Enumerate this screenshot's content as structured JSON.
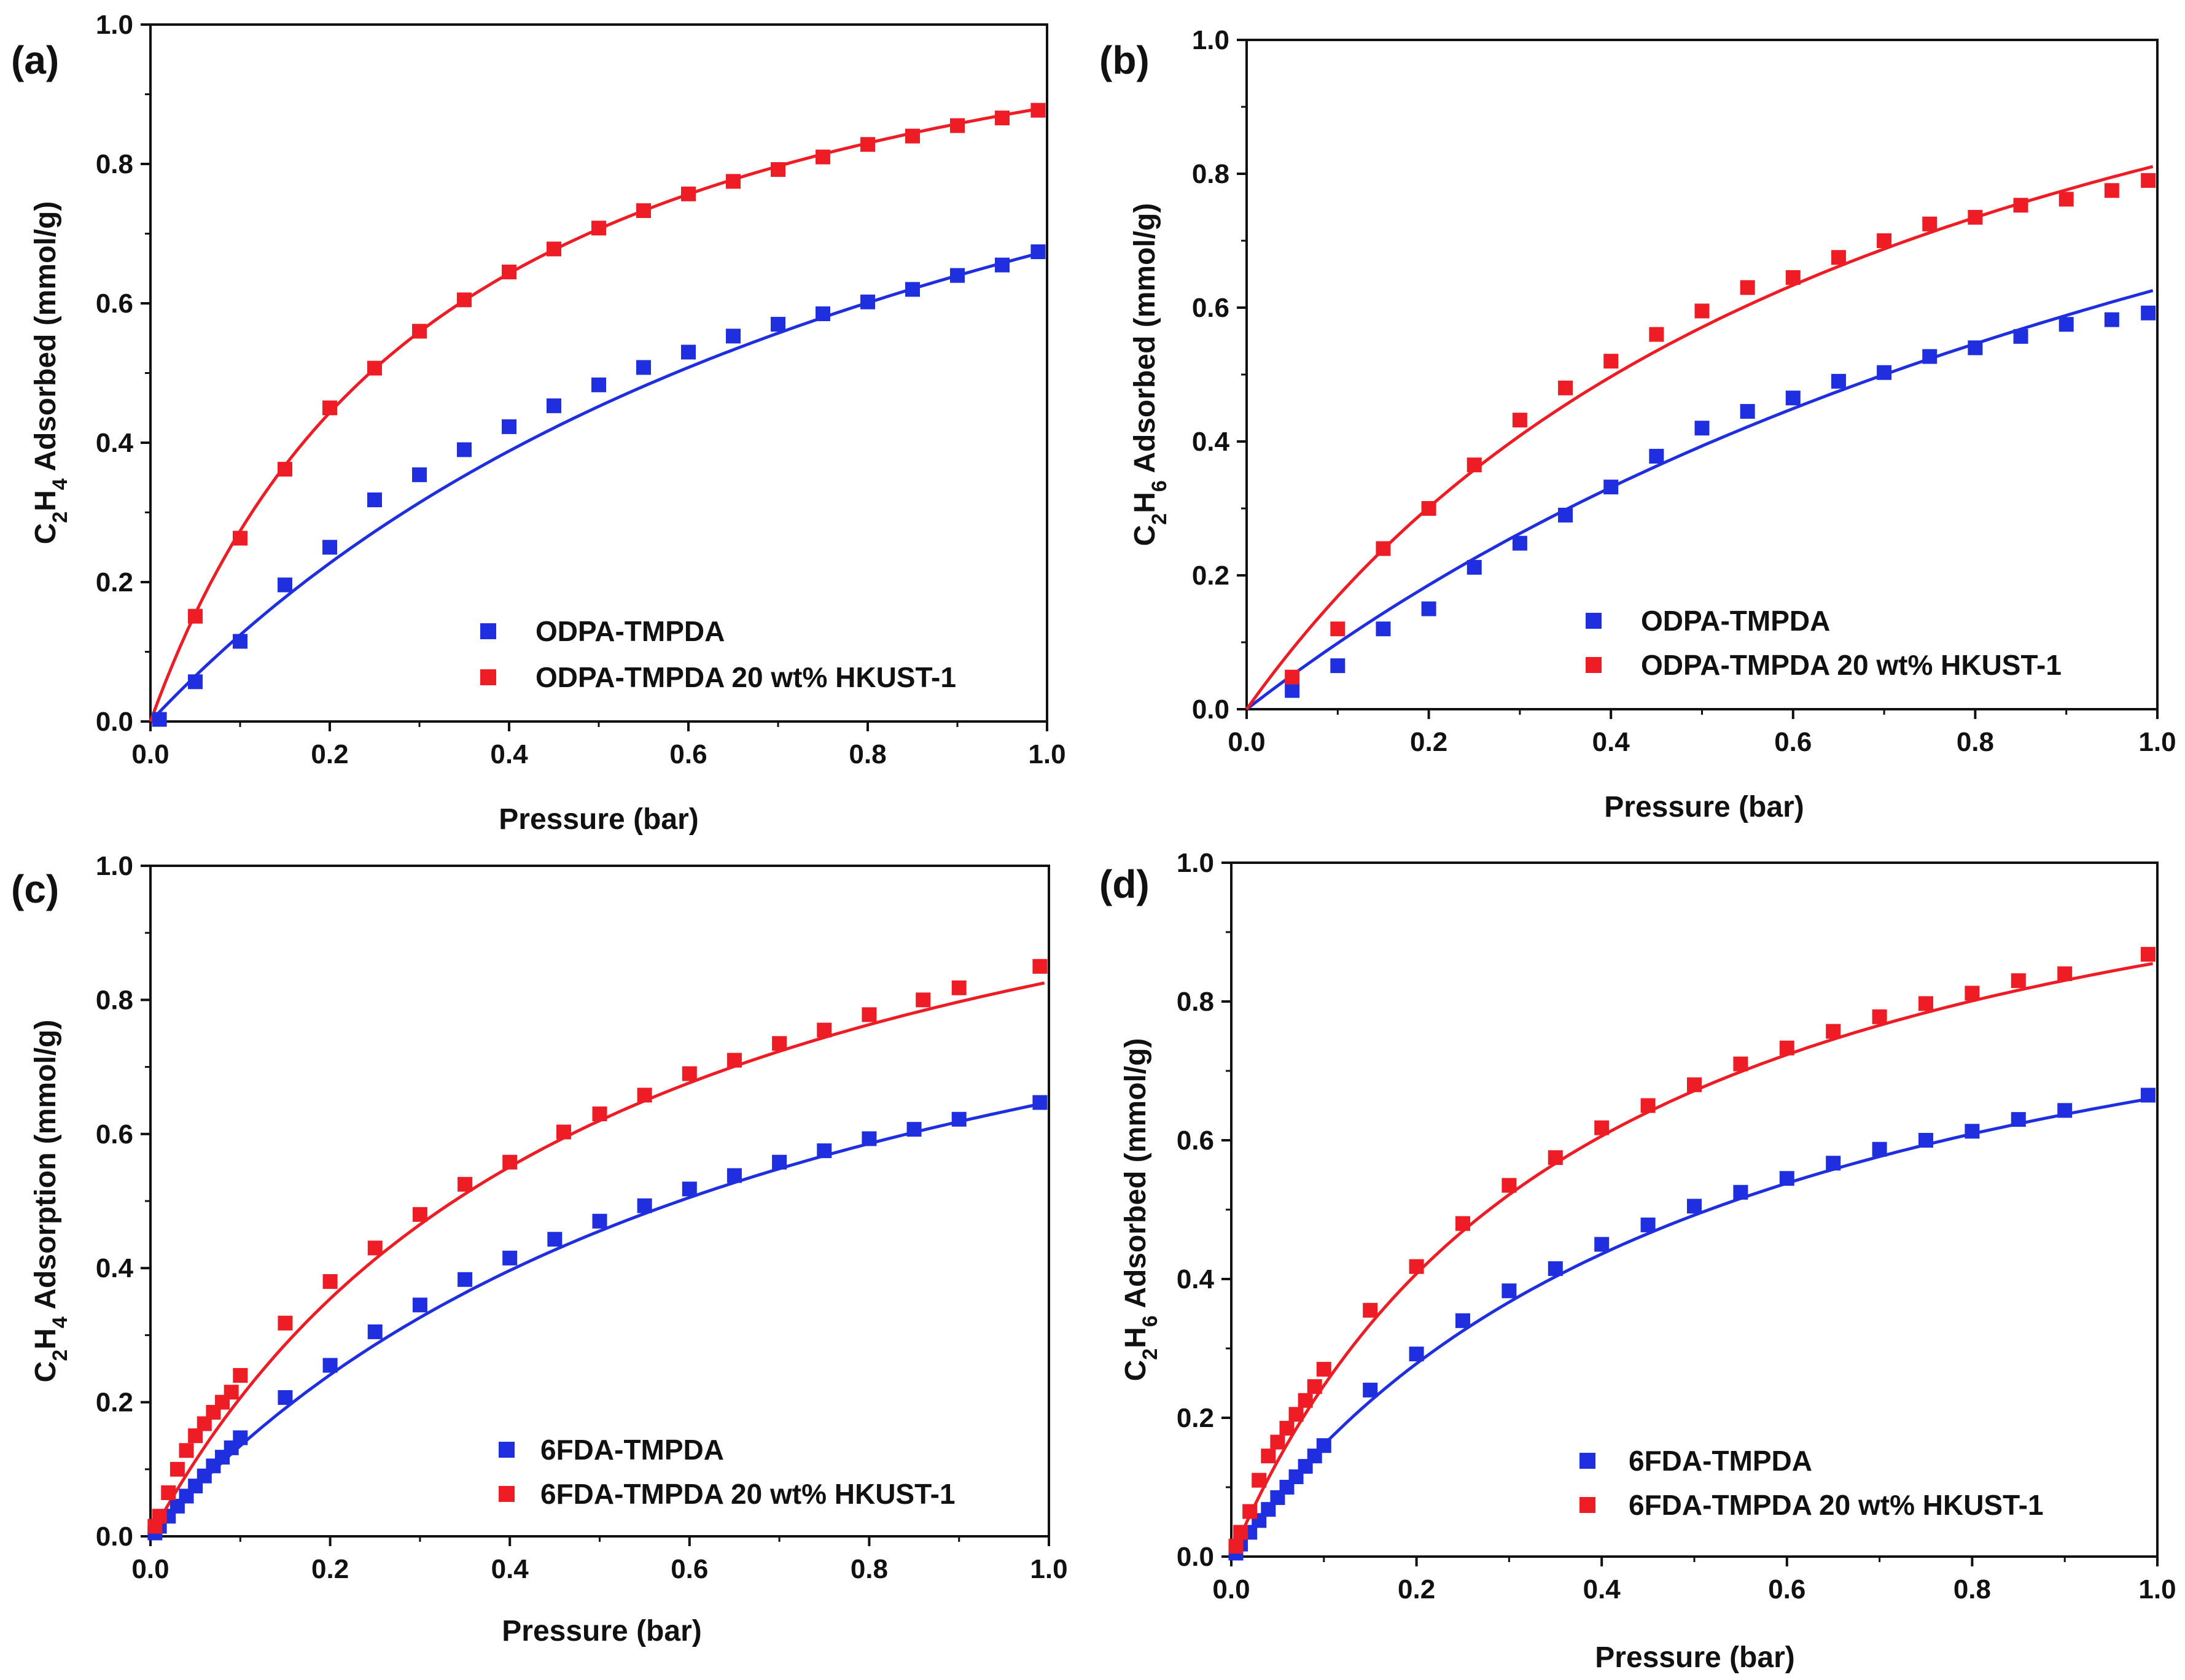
{
  "figure": {
    "panels": [
      "(a)",
      "(b)",
      "(c)",
      "(d)"
    ]
  },
  "colors": {
    "blue": "#1f2fe0",
    "red": "#ee1c25",
    "axis": "#111111"
  },
  "chart_data": [
    {
      "type": "scatter",
      "panel": "(a)",
      "title": "",
      "xlabel": "Pressure (bar)",
      "ylabel_parts": [
        "C",
        "2",
        "H",
        "4",
        " Adsorbed (mmol/g)"
      ],
      "xlim": [
        0,
        1
      ],
      "ylim": [
        0,
        1
      ],
      "xticks": [
        "0.0",
        "0.2",
        "0.4",
        "0.6",
        "0.8",
        "1.0"
      ],
      "yticks": [
        "0.0",
        "0.2",
        "0.4",
        "0.6",
        "0.8",
        "1.0"
      ],
      "legend_position": "bottom-right",
      "series": [
        {
          "name": "ODPA-TMPDA",
          "color": "blue",
          "x": [
            0.01,
            0.05,
            0.1,
            0.15,
            0.2,
            0.25,
            0.3,
            0.35,
            0.4,
            0.45,
            0.5,
            0.55,
            0.6,
            0.65,
            0.7,
            0.75,
            0.8,
            0.85,
            0.9,
            0.95,
            0.99
          ],
          "y": [
            0.003,
            0.057,
            0.115,
            0.196,
            0.25,
            0.318,
            0.354,
            0.39,
            0.423,
            0.453,
            0.483,
            0.508,
            0.53,
            0.553,
            0.57,
            0.585,
            0.602,
            0.62,
            0.64,
            0.655,
            0.674
          ],
          "fit": {
            "qmax": 1.33,
            "b": 1.03
          }
        },
        {
          "name": "ODPA-TMPDA 20 wt% HKUST-1",
          "color": "red",
          "x": [
            0.05,
            0.1,
            0.15,
            0.2,
            0.25,
            0.3,
            0.35,
            0.4,
            0.45,
            0.5,
            0.55,
            0.6,
            0.65,
            0.7,
            0.75,
            0.8,
            0.85,
            0.9,
            0.95,
            0.99
          ],
          "y": [
            0.151,
            0.263,
            0.362,
            0.45,
            0.507,
            0.56,
            0.605,
            0.645,
            0.678,
            0.708,
            0.733,
            0.757,
            0.775,
            0.792,
            0.81,
            0.828,
            0.84,
            0.855,
            0.866,
            0.877
          ],
          "fit": {
            "qmax": 1.17,
            "b": 3.05
          }
        }
      ]
    },
    {
      "type": "scatter",
      "panel": "(b)",
      "title": "",
      "xlabel": "Pressure (bar)",
      "ylabel_parts": [
        "C",
        "2",
        "H",
        "6",
        " Adsorbed (mmol/g)"
      ],
      "xlim": [
        0,
        1
      ],
      "ylim": [
        0,
        1
      ],
      "xticks": [
        "0.0",
        "0.2",
        "0.4",
        "0.6",
        "0.8",
        "1.0"
      ],
      "yticks": [
        "0.0",
        "0.2",
        "0.4",
        "0.6",
        "0.8",
        "1.0"
      ],
      "legend_position": "bottom-right",
      "series": [
        {
          "name": "ODPA-TMPDA",
          "color": "blue",
          "x": [
            0.05,
            0.1,
            0.15,
            0.2,
            0.25,
            0.3,
            0.35,
            0.4,
            0.45,
            0.5,
            0.55,
            0.6,
            0.65,
            0.7,
            0.75,
            0.8,
            0.85,
            0.9,
            0.95,
            0.99
          ],
          "y": [
            0.028,
            0.065,
            0.12,
            0.15,
            0.212,
            0.248,
            0.29,
            0.332,
            0.378,
            0.42,
            0.445,
            0.465,
            0.49,
            0.503,
            0.527,
            0.54,
            0.557,
            0.575,
            0.582,
            0.592
          ],
          "fit": {
            "qmax": 1.55,
            "b": 0.68
          }
        },
        {
          "name": "ODPA-TMPDA 20 wt% HKUST-1",
          "color": "red",
          "x": [
            0.05,
            0.1,
            0.15,
            0.2,
            0.25,
            0.3,
            0.35,
            0.4,
            0.45,
            0.5,
            0.55,
            0.6,
            0.65,
            0.7,
            0.75,
            0.8,
            0.85,
            0.9,
            0.95,
            0.99
          ],
          "y": [
            0.048,
            0.12,
            0.24,
            0.3,
            0.365,
            0.432,
            0.48,
            0.52,
            0.56,
            0.595,
            0.63,
            0.645,
            0.675,
            0.7,
            0.725,
            0.735,
            0.753,
            0.762,
            0.775,
            0.79
          ],
          "fit": {
            "qmax": 1.41,
            "b": 1.36
          }
        }
      ]
    },
    {
      "type": "scatter",
      "panel": "(c)",
      "title": "",
      "xlabel": "Pressure (bar)",
      "ylabel_parts": [
        "C",
        "2",
        "H",
        "4",
        " Adsorption (mmol/g)"
      ],
      "xlim": [
        0,
        1
      ],
      "ylim": [
        0,
        1
      ],
      "xticks": [
        "0.0",
        "0.2",
        "0.4",
        "0.6",
        "0.8",
        "1.0"
      ],
      "yticks": [
        "0.0",
        "0.2",
        "0.4",
        "0.6",
        "0.8",
        "1.0"
      ],
      "legend_position": "bottom-right",
      "series": [
        {
          "name": "6FDA-TMPDA",
          "color": "blue",
          "x": [
            0.005,
            0.01,
            0.02,
            0.03,
            0.04,
            0.05,
            0.06,
            0.07,
            0.08,
            0.09,
            0.1,
            0.15,
            0.2,
            0.25,
            0.3,
            0.35,
            0.4,
            0.45,
            0.5,
            0.55,
            0.6,
            0.65,
            0.7,
            0.75,
            0.8,
            0.85,
            0.9,
            0.99
          ],
          "y": [
            0.005,
            0.015,
            0.03,
            0.045,
            0.06,
            0.075,
            0.09,
            0.105,
            0.118,
            0.132,
            0.147,
            0.207,
            0.255,
            0.305,
            0.345,
            0.383,
            0.415,
            0.443,
            0.47,
            0.493,
            0.518,
            0.538,
            0.558,
            0.575,
            0.593,
            0.607,
            0.622,
            0.647
          ],
          "fit": {
            "qmax": 1.12,
            "b": 1.37
          }
        },
        {
          "name": "6FDA-TMPDA 20 wt% HKUST-1",
          "color": "red",
          "x": [
            0.005,
            0.01,
            0.02,
            0.03,
            0.04,
            0.05,
            0.06,
            0.07,
            0.08,
            0.09,
            0.1,
            0.15,
            0.2,
            0.25,
            0.3,
            0.35,
            0.4,
            0.46,
            0.5,
            0.55,
            0.6,
            0.65,
            0.7,
            0.75,
            0.8,
            0.86,
            0.9,
            0.99
          ],
          "y": [
            0.015,
            0.03,
            0.065,
            0.1,
            0.128,
            0.15,
            0.168,
            0.185,
            0.2,
            0.215,
            0.24,
            0.318,
            0.38,
            0.43,
            0.48,
            0.525,
            0.558,
            0.603,
            0.63,
            0.658,
            0.69,
            0.71,
            0.735,
            0.755,
            0.778,
            0.8,
            0.818,
            0.85
          ],
          "fit": {
            "qmax": 1.24,
            "b": 2.0
          }
        }
      ]
    },
    {
      "type": "scatter",
      "panel": "(d)",
      "title": "",
      "xlabel": "Pressure (bar)",
      "ylabel_parts": [
        "C",
        "2",
        "H",
        "6",
        " Adsorbed (mmol/g)"
      ],
      "xlim": [
        0,
        1
      ],
      "ylim": [
        0,
        1
      ],
      "xticks": [
        "0.0",
        "0.2",
        "0.4",
        "0.6",
        "0.8",
        "1.0"
      ],
      "yticks": [
        "0.0",
        "0.2",
        "0.4",
        "0.6",
        "0.8",
        "1.0"
      ],
      "legend_position": "bottom-right",
      "series": [
        {
          "name": "6FDA-TMPDA",
          "color": "blue",
          "x": [
            0.005,
            0.01,
            0.02,
            0.03,
            0.04,
            0.05,
            0.06,
            0.07,
            0.08,
            0.09,
            0.1,
            0.15,
            0.2,
            0.25,
            0.3,
            0.35,
            0.4,
            0.45,
            0.5,
            0.55,
            0.6,
            0.65,
            0.7,
            0.75,
            0.8,
            0.85,
            0.9,
            0.99
          ],
          "y": [
            0.005,
            0.018,
            0.035,
            0.052,
            0.068,
            0.085,
            0.1,
            0.115,
            0.13,
            0.145,
            0.16,
            0.24,
            0.292,
            0.34,
            0.383,
            0.415,
            0.45,
            0.478,
            0.505,
            0.525,
            0.545,
            0.567,
            0.587,
            0.6,
            0.613,
            0.63,
            0.643,
            0.665
          ],
          "fit": {
            "qmax": 1.01,
            "b": 1.9
          }
        },
        {
          "name": "6FDA-TMPDA 20 wt% HKUST-1",
          "color": "red",
          "x": [
            0.005,
            0.01,
            0.02,
            0.03,
            0.04,
            0.05,
            0.06,
            0.07,
            0.08,
            0.09,
            0.1,
            0.15,
            0.2,
            0.25,
            0.3,
            0.35,
            0.4,
            0.45,
            0.5,
            0.55,
            0.6,
            0.65,
            0.7,
            0.75,
            0.8,
            0.85,
            0.9,
            0.99
          ],
          "y": [
            0.015,
            0.035,
            0.065,
            0.11,
            0.145,
            0.165,
            0.185,
            0.205,
            0.225,
            0.245,
            0.27,
            0.355,
            0.418,
            0.48,
            0.535,
            0.575,
            0.618,
            0.65,
            0.68,
            0.71,
            0.733,
            0.757,
            0.778,
            0.797,
            0.812,
            0.83,
            0.84,
            0.868
          ],
          "fit": {
            "qmax": 1.18,
            "b": 2.64
          }
        }
      ]
    }
  ]
}
